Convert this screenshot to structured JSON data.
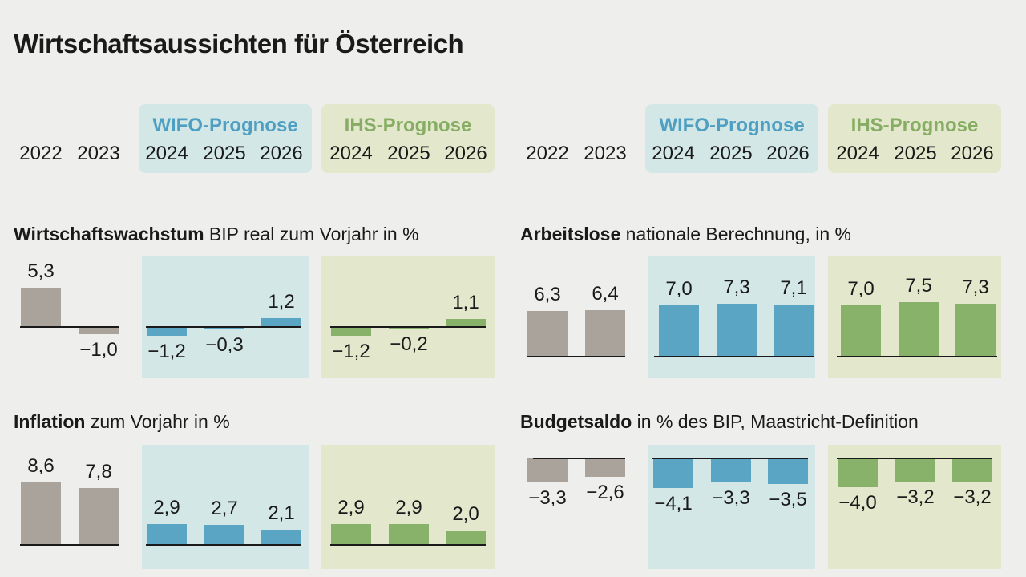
{
  "title": "Wirtschaftsaussichten für Österreich",
  "colors": {
    "background": "#eeeeec",
    "historic": "#a9a39c",
    "wifo": "#5aa4c4",
    "ihs": "#88b26a",
    "wifo_panel": "#d3e8e6",
    "ihs_panel": "#e3e8cc",
    "wifo_text": "#4f9fc2",
    "ihs_text": "#86ad63"
  },
  "header": {
    "wifo_label": "WIFO-Prognose",
    "ihs_label": "IHS-Prognose",
    "years": [
      "2022",
      "2023",
      "2024",
      "2025",
      "2026",
      "2024",
      "2025",
      "2026"
    ]
  },
  "chart_data": [
    {
      "type": "bar",
      "title_bold": "Wirtschaftswachstum",
      "title_rest": "BIP real zum Vorjahr in %",
      "groups": [
        {
          "name": "",
          "categories": [
            "2022",
            "2023"
          ],
          "values": [
            5.3,
            -1.0
          ],
          "labels": [
            "5,3",
            "−1,0"
          ]
        },
        {
          "name": "WIFO-Prognose",
          "categories": [
            "2024",
            "2025",
            "2026"
          ],
          "values": [
            -1.2,
            -0.3,
            1.2
          ],
          "labels": [
            "−1,2",
            "−0,3",
            "1,2"
          ]
        },
        {
          "name": "IHS-Prognose",
          "categories": [
            "2024",
            "2025",
            "2026"
          ],
          "values": [
            -1.2,
            -0.2,
            1.1
          ],
          "labels": [
            "−1,2",
            "−0,2",
            "1,1"
          ]
        }
      ]
    },
    {
      "type": "bar",
      "title_bold": "Arbeitslose",
      "title_rest": "nationale Berechnung, in %",
      "groups": [
        {
          "name": "",
          "categories": [
            "2022",
            "2023"
          ],
          "values": [
            6.3,
            6.4
          ],
          "labels": [
            "6,3",
            "6,4"
          ]
        },
        {
          "name": "WIFO-Prognose",
          "categories": [
            "2024",
            "2025",
            "2026"
          ],
          "values": [
            7.0,
            7.3,
            7.1
          ],
          "labels": [
            "7,0",
            "7,3",
            "7,1"
          ]
        },
        {
          "name": "IHS-Prognose",
          "categories": [
            "2024",
            "2025",
            "2026"
          ],
          "values": [
            7.0,
            7.5,
            7.3
          ],
          "labels": [
            "7,0",
            "7,5",
            "7,3"
          ]
        }
      ]
    },
    {
      "type": "bar",
      "title_bold": "Inflation",
      "title_rest": "zum Vorjahr in %",
      "groups": [
        {
          "name": "",
          "categories": [
            "2022",
            "2023"
          ],
          "values": [
            8.6,
            7.8
          ],
          "labels": [
            "8,6",
            "7,8"
          ]
        },
        {
          "name": "WIFO-Prognose",
          "categories": [
            "2024",
            "2025",
            "2026"
          ],
          "values": [
            2.9,
            2.7,
            2.1
          ],
          "labels": [
            "2,9",
            "2,7",
            "2,1"
          ]
        },
        {
          "name": "IHS-Prognose",
          "categories": [
            "2024",
            "2025",
            "2026"
          ],
          "values": [
            2.9,
            2.9,
            2.0
          ],
          "labels": [
            "2,9",
            "2,9",
            "2,0"
          ]
        }
      ]
    },
    {
      "type": "bar",
      "title_bold": "Budgetsaldo",
      "title_rest": "in % des BIP, Maastricht-Definition",
      "groups": [
        {
          "name": "",
          "categories": [
            "2022",
            "2023"
          ],
          "values": [
            -3.3,
            -2.6
          ],
          "labels": [
            "−3,3",
            "−2,6"
          ]
        },
        {
          "name": "WIFO-Prognose",
          "categories": [
            "2024",
            "2025",
            "2026"
          ],
          "values": [
            -4.1,
            -3.3,
            -3.5
          ],
          "labels": [
            "−4,1",
            "−3,3",
            "−3,5"
          ]
        },
        {
          "name": "IHS-Prognose",
          "categories": [
            "2024",
            "2025",
            "2026"
          ],
          "values": [
            -4.0,
            -3.2,
            -3.2
          ],
          "labels": [
            "−4,0",
            "−3,2",
            "−3,2"
          ]
        }
      ]
    }
  ]
}
